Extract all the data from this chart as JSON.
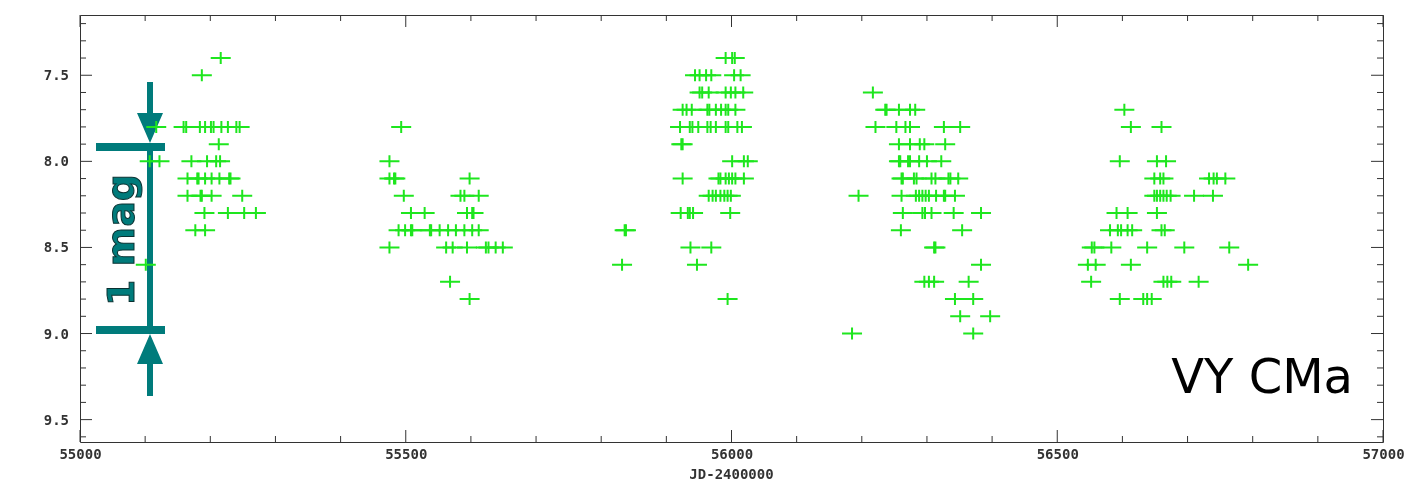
{
  "chart_data": {
    "type": "scatter",
    "xlabel": "JD-2400000",
    "marker": "cross",
    "annotations": [
      "1 mag",
      "VY CMa"
    ],
    "xlim": [
      55000,
      57000
    ],
    "xticks": [
      55000,
      {
        "value": 55100,
        "label": null
      },
      {
        "value": 55200,
        "label": null
      },
      {
        "value": 55300,
        "label": null
      },
      {
        "value": 55400,
        "label": null
      },
      55500,
      {
        "value": 55600,
        "label": null
      },
      {
        "value": 55700,
        "label": null
      },
      {
        "value": 55800,
        "label": null
      },
      {
        "value": 55900,
        "label": null
      },
      56000,
      {
        "value": 56100,
        "label": null
      },
      {
        "value": 56200,
        "label": null
      },
      {
        "value": 56300,
        "label": null
      },
      {
        "value": 56400,
        "label": null
      },
      56500,
      {
        "value": 56600,
        "label": null
      },
      {
        "value": 56700,
        "label": null
      },
      {
        "value": 56800,
        "label": null
      },
      {
        "value": 56900,
        "label": null
      },
      57000
    ],
    "ylim": [
      9.63,
      7.15
    ],
    "yticks": [
      {
        "value": 7.2,
        "label": null
      },
      {
        "value": 7.3,
        "label": null
      },
      {
        "value": 7.4,
        "label": null
      },
      7.5,
      {
        "value": 7.6,
        "label": null
      },
      {
        "value": 7.7,
        "label": null
      },
      {
        "value": 7.8,
        "label": null
      },
      {
        "value": 7.9,
        "label": null
      },
      {
        "value": 8,
        "label": "8.0"
      },
      {
        "value": 8.1,
        "label": null
      },
      {
        "value": 8.2,
        "label": null
      },
      {
        "value": 8.3,
        "label": null
      },
      {
        "value": 8.4,
        "label": null
      },
      8.5,
      {
        "value": 8.6,
        "label": null
      },
      {
        "value": 8.7,
        "label": null
      },
      {
        "value": 8.8,
        "label": null
      },
      {
        "value": 8.9,
        "label": null
      },
      {
        "value": 9,
        "label": "9.0"
      },
      {
        "value": 9.1,
        "label": null
      },
      {
        "value": 9.2,
        "label": null
      },
      {
        "value": 9.3,
        "label": null
      },
      {
        "value": 9.4,
        "label": null
      },
      9.5,
      {
        "value": 9.6,
        "label": null
      }
    ],
    "series": [
      {
        "color": "#1ee61e",
        "x": [
          55216,
          55991,
          56001,
          56005,
          55187,
          55944,
          55951,
          55961,
          55969,
          56004,
          56014,
          55951,
          55955,
          55965,
          55991,
          55999,
          56006,
          56018,
          56217,
          55925,
          55931,
          55939,
          55963,
          55966,
          55976,
          55984,
          55991,
          55995,
          56006,
          56236,
          56238,
          56257,
          56274,
          56282,
          56603,
          55117,
          55159,
          55163,
          55184,
          55192,
          55201,
          55205,
          55217,
          55227,
          55240,
          55245,
          55493,
          55921,
          55936,
          55940,
          55949,
          55963,
          55968,
          55976,
          55991,
          55995,
          56009,
          56016,
          56221,
          56253,
          56267,
          56274,
          56326,
          56351,
          56613,
          56660,
          55213,
          55923,
          55925,
          56257,
          56274,
          56289,
          56296,
          56328,
          55107,
          55122,
          55171,
          55195,
          55209,
          55215,
          55475,
          56001,
          56019,
          56025,
          56257,
          56259,
          56271,
          56274,
          56288,
          56300,
          56322,
          56596,
          56653,
          56667,
          55165,
          55180,
          55182,
          55192,
          55202,
          55214,
          55229,
          55231,
          55475,
          55482,
          55484,
          55598,
          55925,
          55980,
          55983,
          55991,
          55996,
          56001,
          56006,
          56019,
          56261,
          56263,
          56280,
          56284,
          56307,
          56313,
          56333,
          56336,
          56348,
          56649,
          56658,
          56663,
          56733,
          56740,
          56745,
          56758,
          55165,
          55185,
          55187,
          55202,
          55249,
          55497,
          55584,
          55590,
          55612,
          55965,
          55971,
          55976,
          55983,
          55989,
          55994,
          55999,
          56195,
          56261,
          56283,
          56288,
          56293,
          56298,
          56303,
          56314,
          56326,
          56328,
          56343,
          56649,
          56653,
          56658,
          56663,
          56668,
          56674,
          56710,
          56739,
          55191,
          55227,
          55252,
          55270,
          55508,
          55529,
          55594,
          55602,
          55604,
          55922,
          55933,
          55936,
          55941,
          55998,
          56263,
          56293,
          56297,
          56307,
          56341,
          56383,
          56591,
          56608,
          56653,
          55177,
          55192,
          55489,
          55499,
          55508,
          55510,
          55537,
          55539,
          55552,
          55565,
          55577,
          55590,
          55602,
          55612,
          55836,
          55838,
          56260,
          56354,
          56581,
          56593,
          56598,
          56608,
          56615,
          56660,
          56665,
          55475,
          55562,
          55572,
          55594,
          55623,
          55627,
          55638,
          55649,
          55937,
          55969,
          56311,
          56313,
          56553,
          56557,
          56583,
          56638,
          56695,
          56764,
          55101,
          55832,
          55947,
          56383,
          56547,
          56559,
          56613,
          56793,
          55568,
          56296,
          56303,
          56311,
          56364,
          56552,
          56663,
          56669,
          56675,
          56717,
          55598,
          55994,
          56343,
          56371,
          56596,
          56632,
          56638,
          56645,
          56351,
          56397,
          56185,
          56371
        ],
        "values": [
          7.4,
          7.4,
          7.4,
          7.4,
          7.5,
          7.5,
          7.5,
          7.5,
          7.5,
          7.5,
          7.5,
          7.6,
          7.6,
          7.6,
          7.6,
          7.6,
          7.6,
          7.6,
          7.6,
          7.7,
          7.7,
          7.7,
          7.7,
          7.7,
          7.7,
          7.7,
          7.7,
          7.7,
          7.7,
          7.7,
          7.7,
          7.7,
          7.7,
          7.7,
          7.7,
          7.8,
          7.8,
          7.8,
          7.8,
          7.8,
          7.8,
          7.8,
          7.8,
          7.8,
          7.8,
          7.8,
          7.8,
          7.8,
          7.8,
          7.8,
          7.8,
          7.8,
          7.8,
          7.8,
          7.8,
          7.8,
          7.8,
          7.8,
          7.8,
          7.8,
          7.8,
          7.8,
          7.8,
          7.8,
          7.8,
          7.8,
          7.9,
          7.9,
          7.9,
          7.9,
          7.9,
          7.9,
          7.9,
          7.9,
          8.0,
          8.0,
          8.0,
          8.0,
          8.0,
          8.0,
          8.0,
          8.0,
          8.0,
          8.0,
          8.0,
          8.0,
          8.0,
          8.0,
          8.0,
          8.0,
          8.0,
          8.0,
          8.0,
          8.0,
          8.1,
          8.1,
          8.1,
          8.1,
          8.1,
          8.1,
          8.1,
          8.1,
          8.1,
          8.1,
          8.1,
          8.1,
          8.1,
          8.1,
          8.1,
          8.1,
          8.1,
          8.1,
          8.1,
          8.1,
          8.1,
          8.1,
          8.1,
          8.1,
          8.1,
          8.1,
          8.1,
          8.1,
          8.1,
          8.1,
          8.1,
          8.1,
          8.1,
          8.1,
          8.1,
          8.1,
          8.2,
          8.2,
          8.2,
          8.2,
          8.2,
          8.2,
          8.2,
          8.2,
          8.2,
          8.2,
          8.2,
          8.2,
          8.2,
          8.2,
          8.2,
          8.2,
          8.2,
          8.2,
          8.2,
          8.2,
          8.2,
          8.2,
          8.2,
          8.2,
          8.2,
          8.2,
          8.2,
          8.2,
          8.2,
          8.2,
          8.2,
          8.2,
          8.2,
          8.2,
          8.2,
          8.3,
          8.3,
          8.3,
          8.3,
          8.3,
          8.3,
          8.3,
          8.3,
          8.3,
          8.3,
          8.3,
          8.3,
          8.3,
          8.3,
          8.3,
          8.3,
          8.3,
          8.3,
          8.3,
          8.3,
          8.3,
          8.3,
          8.3,
          8.4,
          8.4,
          8.4,
          8.4,
          8.4,
          8.4,
          8.4,
          8.4,
          8.4,
          8.4,
          8.4,
          8.4,
          8.4,
          8.4,
          8.4,
          8.4,
          8.4,
          8.4,
          8.4,
          8.4,
          8.4,
          8.4,
          8.4,
          8.4,
          8.4,
          8.5,
          8.5,
          8.5,
          8.5,
          8.5,
          8.5,
          8.5,
          8.5,
          8.5,
          8.5,
          8.5,
          8.5,
          8.5,
          8.5,
          8.5,
          8.5,
          8.5,
          8.5,
          8.6,
          8.6,
          8.6,
          8.6,
          8.6,
          8.6,
          8.6,
          8.6,
          8.7,
          8.7,
          8.7,
          8.7,
          8.7,
          8.7,
          8.7,
          8.7,
          8.7,
          8.7,
          8.8,
          8.8,
          8.8,
          8.8,
          8.8,
          8.8,
          8.8,
          8.8,
          8.9,
          8.9,
          9.0,
          9.0
        ]
      }
    ]
  }
}
